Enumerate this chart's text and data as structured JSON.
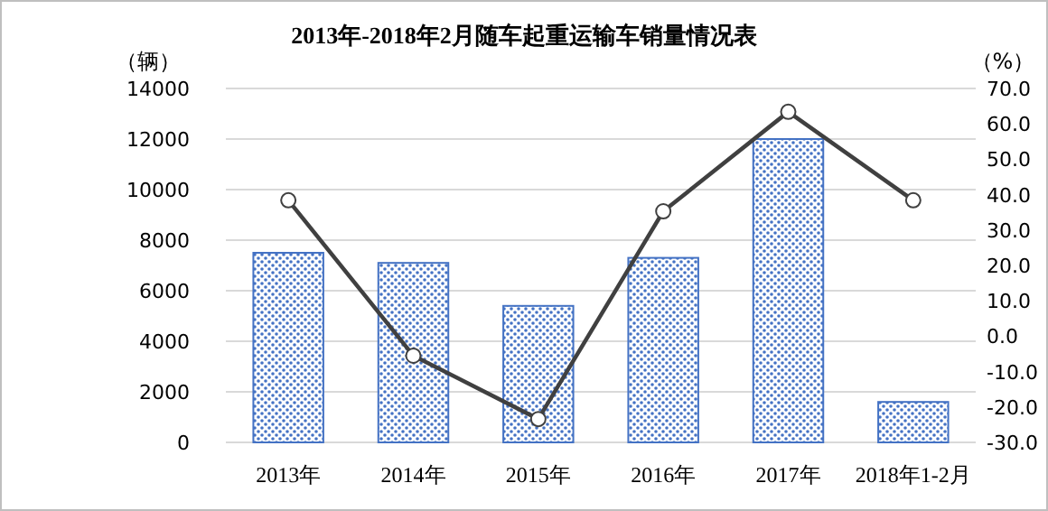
{
  "chart_data": {
    "type": "bar",
    "title": "2013年-2018年2月随车起重运输车销量情况表",
    "categories": [
      "2013年",
      "2014年",
      "2015年",
      "2016年",
      "2017年",
      "2018年1-2月"
    ],
    "ylabel": "（辆）",
    "y2label": "（%）",
    "series": [
      {
        "color": "#4472c4",
        "values": [
          7500,
          7100,
          5400,
          7300,
          12000,
          1600
        ]
      },
      {
        "type": "line",
        "axis": "y2",
        "color": "#404040",
        "marker": "circle",
        "values": [
          38.4,
          -5.5,
          -23.4,
          35.3,
          63.4,
          38.4
        ]
      }
    ],
    "ylim": [
      0,
      14000
    ],
    "yticks": [
      0,
      2000,
      4000,
      6000,
      8000,
      10000,
      12000,
      14000
    ],
    "y2lim": [
      -30,
      70
    ],
    "y2ticks": [
      {
        "value": -30,
        "label": "-30.0"
      },
      {
        "value": -20,
        "label": "-20.0"
      },
      {
        "value": -10,
        "label": "-10.0"
      },
      {
        "value": 0,
        "label": "0.0"
      },
      {
        "value": 10,
        "label": "10.0"
      },
      {
        "value": 20,
        "label": "20.0"
      },
      {
        "value": 30,
        "label": "30.0"
      },
      {
        "value": 40,
        "label": "40.0"
      },
      {
        "value": 50,
        "label": "50.0"
      },
      {
        "value": 60,
        "label": "60.0"
      },
      {
        "value": 70,
        "label": "70.0"
      }
    ],
    "grid": "y"
  }
}
